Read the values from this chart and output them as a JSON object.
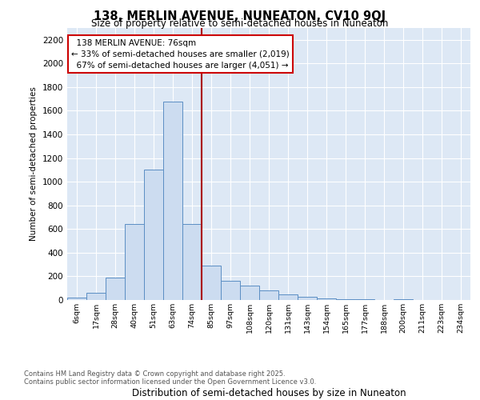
{
  "title_line1": "138, MERLIN AVENUE, NUNEATON, CV10 9QJ",
  "title_line2": "Size of property relative to semi-detached houses in Nuneaton",
  "xlabel": "Distribution of semi-detached houses by size in Nuneaton",
  "ylabel": "Number of semi-detached properties",
  "bar_color": "#ccdcf0",
  "bar_edge_color": "#5b8ec4",
  "grid_color": "#d0dcea",
  "bg_color": "#dde8f5",
  "vline_color": "#aa0000",
  "ann_border_color": "#cc0000",
  "categories": [
    "6sqm",
    "17sqm",
    "28sqm",
    "40sqm",
    "51sqm",
    "63sqm",
    "74sqm",
    "85sqm",
    "97sqm",
    "108sqm",
    "120sqm",
    "131sqm",
    "143sqm",
    "154sqm",
    "165sqm",
    "177sqm",
    "188sqm",
    "200sqm",
    "211sqm",
    "223sqm",
    "234sqm"
  ],
  "values": [
    20,
    60,
    190,
    640,
    1100,
    1680,
    640,
    290,
    160,
    120,
    80,
    50,
    30,
    15,
    8,
    5,
    0,
    5,
    0,
    0,
    0
  ],
  "property_label": "138 MERLIN AVENUE: 76sqm",
  "pct_smaller": 33,
  "pct_larger": 67,
  "count_smaller": 2019,
  "count_larger": 4051,
  "vline_idx": 6,
  "ylim_max": 2300,
  "yticks": [
    0,
    200,
    400,
    600,
    800,
    1000,
    1200,
    1400,
    1600,
    1800,
    2000,
    2200
  ],
  "footnote1": "Contains HM Land Registry data © Crown copyright and database right 2025.",
  "footnote2": "Contains public sector information licensed under the Open Government Licence v3.0."
}
